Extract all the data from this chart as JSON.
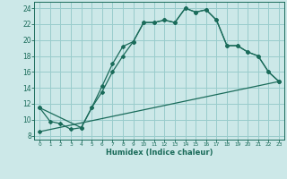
{
  "xlabel": "Humidex (Indice chaleur)",
  "background_color": "#cce8e8",
  "grid_color": "#99cccc",
  "line_color": "#1a6b5a",
  "xlim": [
    -0.5,
    23.5
  ],
  "ylim": [
    7.5,
    24.8
  ],
  "xticks": [
    0,
    1,
    2,
    3,
    4,
    5,
    6,
    7,
    8,
    9,
    10,
    11,
    12,
    13,
    14,
    15,
    16,
    17,
    18,
    19,
    20,
    21,
    22,
    23
  ],
  "yticks": [
    8,
    10,
    12,
    14,
    16,
    18,
    20,
    22,
    24
  ],
  "line1_x": [
    0,
    1,
    2,
    3,
    4,
    5,
    6,
    7,
    8,
    9,
    10,
    11,
    12,
    13,
    14,
    15,
    16,
    17,
    18,
    19,
    20,
    21,
    22,
    23
  ],
  "line1_y": [
    11.5,
    9.8,
    9.5,
    8.8,
    9.0,
    11.5,
    14.2,
    17.0,
    19.2,
    19.8,
    22.2,
    22.2,
    22.5,
    22.2,
    24.0,
    23.5,
    23.8,
    22.5,
    19.3,
    19.3,
    18.5,
    18.0,
    16.0,
    14.8
  ],
  "line2_x": [
    0,
    4,
    5,
    6,
    7,
    8,
    9,
    10,
    11,
    12,
    13,
    14,
    15,
    16,
    17,
    18,
    19,
    20,
    21,
    22,
    23
  ],
  "line2_y": [
    11.5,
    9.0,
    11.5,
    13.5,
    16.0,
    18.0,
    19.8,
    22.2,
    22.2,
    22.5,
    22.2,
    24.0,
    23.5,
    23.8,
    22.5,
    19.3,
    19.3,
    18.5,
    18.0,
    16.0,
    14.8
  ],
  "line3_x": [
    0,
    23
  ],
  "line3_y": [
    8.5,
    14.8
  ]
}
